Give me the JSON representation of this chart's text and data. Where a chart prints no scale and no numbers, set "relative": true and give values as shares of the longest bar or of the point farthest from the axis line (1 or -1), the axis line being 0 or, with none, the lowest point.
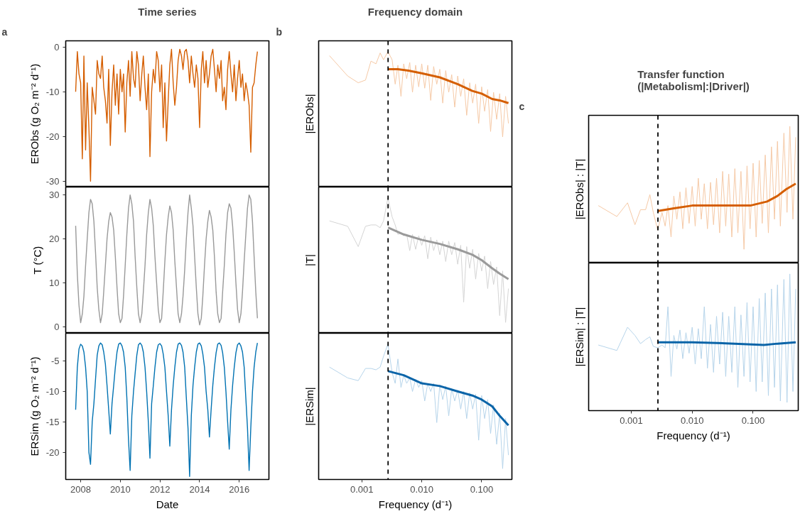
{
  "chart_data": [
    {
      "type": "line",
      "title": "Time series",
      "annotations": [
        "a"
      ],
      "ylabel": "ERObs (g O₂ m⁻² d⁻¹)",
      "tick_labels": "y",
      "xlim": [
        "2007-04",
        "2017-07"
      ],
      "xticks": [
        "2008",
        "2010",
        "2012",
        "2014",
        "2016"
      ],
      "ylim": [
        -31.3,
        1.4
      ],
      "yticks": [
        -30,
        -20,
        -10,
        0
      ],
      "x": [
        "2007-10",
        "2007-11",
        "2007-12",
        "2008-01",
        "2008-02",
        "2008-03",
        "2008-04",
        "2008-05",
        "2008-06",
        "2008-07",
        "2008-08",
        "2008-09",
        "2008-10",
        "2008-11",
        "2008-12",
        "2009-01",
        "2009-02",
        "2009-03",
        "2009-04",
        "2009-05",
        "2009-06",
        "2009-07",
        "2009-08",
        "2009-09",
        "2009-10",
        "2009-11",
        "2009-12",
        "2010-01",
        "2010-02",
        "2010-03",
        "2010-04",
        "2010-05",
        "2010-06",
        "2010-07",
        "2010-08",
        "2010-09",
        "2010-10",
        "2010-11",
        "2010-12",
        "2011-01",
        "2011-02",
        "2011-03",
        "2011-04",
        "2011-05",
        "2011-06",
        "2011-07",
        "2011-08",
        "2011-09",
        "2011-10",
        "2011-11",
        "2011-12",
        "2012-01",
        "2012-02",
        "2012-03",
        "2012-04",
        "2012-05",
        "2012-06",
        "2012-07",
        "2012-08",
        "2012-09",
        "2012-10",
        "2012-11",
        "2012-12",
        "2013-01",
        "2013-02",
        "2013-03",
        "2013-04",
        "2013-05",
        "2013-06",
        "2013-07",
        "2013-08",
        "2013-09",
        "2013-10",
        "2013-11",
        "2013-12",
        "2014-01",
        "2014-02",
        "2014-03",
        "2014-04",
        "2014-05",
        "2014-06",
        "2014-07",
        "2014-08",
        "2014-09",
        "2014-10",
        "2014-11",
        "2014-12",
        "2015-01",
        "2015-02",
        "2015-03",
        "2015-04",
        "2015-05",
        "2015-06",
        "2015-07",
        "2015-08",
        "2015-09",
        "2015-10",
        "2015-11",
        "2015-12",
        "2016-01",
        "2016-02",
        "2016-03",
        "2016-04",
        "2016-05",
        "2016-06",
        "2016-07",
        "2016-08",
        "2016-09",
        "2016-10",
        "2016-11",
        "2016-12"
      ],
      "series": [
        {
          "color": "#d55e00",
          "values": [
            -10,
            -1,
            -6,
            -8,
            -25,
            -2,
            -23,
            -8,
            -18,
            -30,
            -9,
            -12,
            -15,
            -3,
            -6,
            -7,
            -2,
            -9,
            -12,
            -17,
            -5,
            -22,
            -10,
            -4,
            -13,
            -6,
            -15,
            -5,
            -10,
            -6,
            -19,
            -8,
            -3,
            -11,
            -1,
            -7,
            -9,
            -1,
            -4,
            -12,
            -6,
            -2,
            -9,
            -14,
            -6,
            -24.5,
            -10,
            -5,
            -8,
            -1,
            -3,
            -10,
            -4,
            -18,
            -8,
            -21,
            -12,
            -4,
            -0.5,
            -8,
            -13,
            -9,
            -3,
            -0.5,
            -2,
            -5,
            -1,
            -0.5,
            -3,
            -8,
            -2,
            -6,
            -9,
            -4,
            -7,
            -18,
            -5,
            -1,
            -8,
            -3,
            -9,
            -6,
            -2,
            -0.5,
            -5,
            -10,
            -4,
            -7,
            -3,
            -12,
            -9,
            -14,
            -5,
            -1,
            -6,
            -10,
            -4,
            -12,
            -7,
            -3,
            -9,
            -6,
            -12,
            -8,
            -10,
            -13,
            -23.5,
            -9,
            -8,
            -4,
            -1
          ]
        }
      ]
    },
    {
      "type": "line",
      "ylabel": "T (°C)",
      "tick_labels": "y",
      "xlim": [
        "2007-04",
        "2017-07"
      ],
      "xticks": [
        "2008",
        "2010",
        "2012",
        "2014",
        "2016"
      ],
      "ylim": [
        -1.4,
        31.8
      ],
      "yticks": [
        0,
        10,
        20,
        30
      ],
      "x": [
        "2007-10",
        "2007-11",
        "2007-12",
        "2008-01",
        "2008-02",
        "2008-03",
        "2008-04",
        "2008-05",
        "2008-06",
        "2008-07",
        "2008-08",
        "2008-09",
        "2008-10",
        "2008-11",
        "2008-12",
        "2009-01",
        "2009-02",
        "2009-03",
        "2009-04",
        "2009-05",
        "2009-06",
        "2009-07",
        "2009-08",
        "2009-09",
        "2009-10",
        "2009-11",
        "2009-12",
        "2010-01",
        "2010-02",
        "2010-03",
        "2010-04",
        "2010-05",
        "2010-06",
        "2010-07",
        "2010-08",
        "2010-09",
        "2010-10",
        "2010-11",
        "2010-12",
        "2011-01",
        "2011-02",
        "2011-03",
        "2011-04",
        "2011-05",
        "2011-06",
        "2011-07",
        "2011-08",
        "2011-09",
        "2011-10",
        "2011-11",
        "2011-12",
        "2012-01",
        "2012-02",
        "2012-03",
        "2012-04",
        "2012-05",
        "2012-06",
        "2012-07",
        "2012-08",
        "2012-09",
        "2012-10",
        "2012-11",
        "2012-12",
        "2013-01",
        "2013-02",
        "2013-03",
        "2013-04",
        "2013-05",
        "2013-06",
        "2013-07",
        "2013-08",
        "2013-09",
        "2013-10",
        "2013-11",
        "2013-12",
        "2014-01",
        "2014-02",
        "2014-03",
        "2014-04",
        "2014-05",
        "2014-06",
        "2014-07",
        "2014-08",
        "2014-09",
        "2014-10",
        "2014-11",
        "2014-12",
        "2015-01",
        "2015-02",
        "2015-03",
        "2015-04",
        "2015-05",
        "2015-06",
        "2015-07",
        "2015-08",
        "2015-09",
        "2015-10",
        "2015-11",
        "2015-12",
        "2016-01",
        "2016-02",
        "2016-03",
        "2016-04",
        "2016-05",
        "2016-06",
        "2016-07",
        "2016-08",
        "2016-09",
        "2016-10",
        "2016-11",
        "2016-12"
      ],
      "series": [
        {
          "color": "#999999",
          "values": [
            23,
            12,
            5,
            1,
            3,
            7,
            14,
            20,
            26,
            29,
            28,
            24,
            17,
            9,
            4,
            1,
            3,
            8,
            14,
            20,
            24,
            26,
            25,
            22,
            16,
            9,
            3,
            1,
            2,
            7,
            14,
            21,
            27,
            30,
            28,
            24,
            16,
            9,
            3,
            1,
            3,
            8,
            14,
            21,
            26,
            29,
            27,
            23,
            16,
            10,
            4,
            1,
            2,
            8,
            15,
            21,
            25,
            27.5,
            26,
            22,
            15,
            9,
            3,
            1,
            3,
            7,
            13,
            20,
            26,
            30,
            27,
            23,
            16,
            9,
            3,
            0.5,
            2,
            7,
            14,
            20,
            24,
            26.5,
            25,
            22,
            16,
            8,
            3,
            1,
            2,
            8,
            14,
            21,
            26,
            28,
            27,
            23,
            17,
            10,
            4,
            1,
            3,
            8,
            15,
            21,
            27,
            30,
            29,
            24,
            16,
            8,
            2
          ]
        }
      ]
    },
    {
      "type": "line",
      "ylabel": "ERSim (g O₂ m⁻² d⁻¹)",
      "xlabel": "Date",
      "xlim": [
        "2007-04",
        "2017-07"
      ],
      "xticks": [
        "2008",
        "2010",
        "2012",
        "2014",
        "2016"
      ],
      "ylim": [
        -24.5,
        -0.4
      ],
      "yticks": [
        -20,
        -15,
        -10,
        -5
      ],
      "x": [
        "2007-10",
        "2007-11",
        "2007-12",
        "2008-01",
        "2008-02",
        "2008-03",
        "2008-04",
        "2008-05",
        "2008-06",
        "2008-07",
        "2008-08",
        "2008-09",
        "2008-10",
        "2008-11",
        "2008-12",
        "2009-01",
        "2009-02",
        "2009-03",
        "2009-04",
        "2009-05",
        "2009-06",
        "2009-07",
        "2009-08",
        "2009-09",
        "2009-10",
        "2009-11",
        "2009-12",
        "2010-01",
        "2010-02",
        "2010-03",
        "2010-04",
        "2010-05",
        "2010-06",
        "2010-07",
        "2010-08",
        "2010-09",
        "2010-10",
        "2010-11",
        "2010-12",
        "2011-01",
        "2011-02",
        "2011-03",
        "2011-04",
        "2011-05",
        "2011-06",
        "2011-07",
        "2011-08",
        "2011-09",
        "2011-10",
        "2011-11",
        "2011-12",
        "2012-01",
        "2012-02",
        "2012-03",
        "2012-04",
        "2012-05",
        "2012-06",
        "2012-07",
        "2012-08",
        "2012-09",
        "2012-10",
        "2012-11",
        "2012-12",
        "2013-01",
        "2013-02",
        "2013-03",
        "2013-04",
        "2013-05",
        "2013-06",
        "2013-07",
        "2013-08",
        "2013-09",
        "2013-10",
        "2013-11",
        "2013-12",
        "2014-01",
        "2014-02",
        "2014-03",
        "2014-04",
        "2014-05",
        "2014-06",
        "2014-07",
        "2014-08",
        "2014-09",
        "2014-10",
        "2014-11",
        "2014-12",
        "2015-01",
        "2015-02",
        "2015-03",
        "2015-04",
        "2015-05",
        "2015-06",
        "2015-07",
        "2015-08",
        "2015-09",
        "2015-10",
        "2015-11",
        "2015-12",
        "2016-01",
        "2016-02",
        "2016-03",
        "2016-04",
        "2016-05",
        "2016-06",
        "2016-07",
        "2016-08",
        "2016-09",
        "2016-10",
        "2016-11",
        "2016-12"
      ],
      "series": [
        {
          "color": "#0072b2",
          "values": [
            -13,
            -6,
            -3,
            -2.2,
            -2.5,
            -3.5,
            -6,
            -10,
            -20,
            -22,
            -15,
            -12,
            -8,
            -4,
            -2.5,
            -2,
            -2.3,
            -3.5,
            -5.5,
            -9,
            -13,
            -17,
            -12,
            -9,
            -6,
            -3.5,
            -2.2,
            -2,
            -2.5,
            -3.5,
            -6,
            -11,
            -18,
            -23,
            -14,
            -10,
            -7,
            -4,
            -2.3,
            -2,
            -2.4,
            -3.5,
            -6,
            -10,
            -15,
            -21,
            -12,
            -9,
            -6,
            -3.5,
            -2.3,
            -2.1,
            -2.5,
            -3.8,
            -6,
            -10,
            -14,
            -19,
            -13,
            -9,
            -6,
            -3.5,
            -2.2,
            -2,
            -2.4,
            -3.5,
            -6,
            -11,
            -16,
            -24,
            -14,
            -9,
            -6,
            -3.5,
            -2.2,
            -2,
            -2.5,
            -3.8,
            -6,
            -10,
            -13,
            -17.5,
            -13,
            -9,
            -6,
            -3.6,
            -2.2,
            -2,
            -2.4,
            -3.6,
            -6,
            -10,
            -15,
            -19.5,
            -13,
            -9,
            -6,
            -3.6,
            -2.3,
            -2,
            -2.5,
            -3.5,
            -6,
            -11,
            -16,
            -23,
            -16,
            -10,
            -6,
            -3.5,
            -2
          ]
        }
      ]
    },
    {
      "type": "line",
      "title": "Frequency domain",
      "annotations": [
        "b"
      ],
      "ylabel": "|ERObs|",
      "relative": true,
      "log": "x",
      "tick_labels": false,
      "xlim": [
        0.00019,
        0.32
      ],
      "ref_lines": [
        {
          "axis": "x",
          "value": 0.00274,
          "color": "#000000",
          "line_style": "dashed"
        }
      ],
      "series": [
        {
          "color": "#f5c9a6",
          "x": [
            0.000288,
            0.00058,
            0.00087,
            0.00115,
            0.00142,
            0.00172,
            0.00202,
            0.0023,
            0.00272,
            0.0032,
            0.0036,
            0.004,
            0.0045,
            0.005,
            0.0056,
            0.0063,
            0.007,
            0.0079,
            0.0089,
            0.01,
            0.0112,
            0.0126,
            0.0141,
            0.0158,
            0.0178,
            0.02,
            0.0224,
            0.0251,
            0.0282,
            0.0316,
            0.0355,
            0.0398,
            0.0447,
            0.0501,
            0.0562,
            0.0631,
            0.0708,
            0.0794,
            0.0891,
            0.1,
            0.112,
            0.126,
            0.141,
            0.158,
            0.178,
            0.2,
            0.224,
            0.251,
            0.28
          ],
          "values": [
            0.97,
            0.82,
            0.77,
            0.79,
            0.93,
            0.91,
            0.99,
            0.94,
            1.0,
            0.94,
            0.76,
            0.9,
            0.67,
            0.91,
            0.8,
            0.92,
            0.7,
            0.9,
            0.74,
            0.91,
            0.73,
            0.9,
            0.64,
            0.89,
            0.76,
            0.87,
            0.62,
            0.86,
            0.7,
            0.83,
            0.59,
            0.82,
            0.67,
            0.8,
            0.53,
            0.77,
            0.62,
            0.76,
            0.47,
            0.74,
            0.56,
            0.72,
            0.41,
            0.7,
            0.5,
            0.69,
            0.37,
            0.67,
            0.47
          ]
        },
        {
          "color": "#d55e00",
          "x": [
            0.00274,
            0.004,
            0.006,
            0.01,
            0.02,
            0.04,
            0.07,
            0.1,
            0.15,
            0.2,
            0.28
          ],
          "values": [
            0.87,
            0.87,
            0.86,
            0.84,
            0.81,
            0.76,
            0.71,
            0.69,
            0.65,
            0.64,
            0.62
          ]
        }
      ]
    },
    {
      "type": "line",
      "ylabel": "|T|",
      "relative": true,
      "log": "x",
      "tick_labels": false,
      "xlim": [
        0.00019,
        0.32
      ],
      "ref_lines": [
        {
          "axis": "x",
          "value": 0.00274,
          "color": "#000000",
          "line_style": "dashed"
        }
      ],
      "series": [
        {
          "color": "#d4d4d4",
          "x": [
            0.000288,
            0.00058,
            0.00087,
            0.00115,
            0.00142,
            0.00172,
            0.00202,
            0.0023,
            0.00272,
            0.0032,
            0.0036,
            0.004,
            0.0045,
            0.005,
            0.0056,
            0.0063,
            0.007,
            0.0079,
            0.0089,
            0.01,
            0.0112,
            0.0126,
            0.0141,
            0.0158,
            0.0178,
            0.02,
            0.0224,
            0.0251,
            0.0282,
            0.0316,
            0.0355,
            0.0398,
            0.0447,
            0.0501,
            0.0562,
            0.0631,
            0.0708,
            0.0794,
            0.0891,
            0.1,
            0.112,
            0.126,
            0.141,
            0.158,
            0.178,
            0.2,
            0.224,
            0.251,
            0.28
          ],
          "values": [
            0.83,
            0.79,
            0.64,
            0.79,
            0.8,
            0.8,
            0.78,
            0.83,
            1.0,
            0.86,
            0.8,
            0.73,
            0.74,
            0.72,
            0.73,
            0.61,
            0.73,
            0.62,
            0.72,
            0.65,
            0.72,
            0.55,
            0.71,
            0.61,
            0.69,
            0.58,
            0.68,
            0.53,
            0.68,
            0.58,
            0.67,
            0.51,
            0.65,
            0.23,
            0.64,
            0.48,
            0.62,
            0.4,
            0.59,
            0.46,
            0.57,
            0.33,
            0.53,
            0.36,
            0.49,
            0.13,
            0.46,
            0.08,
            0.33
          ]
        },
        {
          "color": "#9a9a9a",
          "x": [
            0.00274,
            0.005,
            0.01,
            0.02,
            0.04,
            0.07,
            0.1,
            0.15,
            0.2,
            0.28
          ],
          "values": [
            0.78,
            0.73,
            0.69,
            0.66,
            0.62,
            0.58,
            0.54,
            0.48,
            0.44,
            0.4
          ]
        }
      ]
    },
    {
      "type": "line",
      "ylabel": "|ERSim|",
      "xlabel": "Frequency (d⁻¹)",
      "relative": true,
      "log": "x",
      "tick_labels": "x",
      "xlim": [
        0.00019,
        0.32
      ],
      "xticks": [
        {
          "value": 0.001,
          "label": "0.001"
        },
        {
          "value": 0.01,
          "label": "0.010"
        },
        {
          "value": 0.1,
          "label": "0.100"
        }
      ],
      "ref_lines": [
        {
          "axis": "x",
          "value": 0.00274,
          "color": "#000000",
          "line_style": "dashed"
        }
      ],
      "series": [
        {
          "color": "#b6d4ea",
          "x": [
            0.000288,
            0.00058,
            0.00087,
            0.00115,
            0.00142,
            0.00172,
            0.00202,
            0.0023,
            0.00272,
            0.0032,
            0.0036,
            0.004,
            0.0045,
            0.005,
            0.0056,
            0.0063,
            0.007,
            0.0079,
            0.0089,
            0.01,
            0.0112,
            0.0126,
            0.0141,
            0.0158,
            0.0178,
            0.02,
            0.0224,
            0.0251,
            0.0282,
            0.0316,
            0.0355,
            0.0398,
            0.0447,
            0.0501,
            0.0562,
            0.0631,
            0.0708,
            0.0794,
            0.0891,
            0.1,
            0.112,
            0.126,
            0.141,
            0.158,
            0.178,
            0.2,
            0.224,
            0.251,
            0.28
          ],
          "values": [
            0.83,
            0.75,
            0.73,
            0.82,
            0.82,
            0.81,
            0.83,
            0.91,
            1.0,
            0.79,
            0.71,
            0.89,
            0.68,
            0.77,
            0.71,
            0.75,
            0.65,
            0.74,
            0.68,
            0.73,
            0.58,
            0.71,
            0.65,
            0.71,
            0.42,
            0.7,
            0.59,
            0.69,
            0.47,
            0.67,
            0.58,
            0.66,
            0.52,
            0.65,
            0.45,
            0.64,
            0.52,
            0.63,
            0.29,
            0.62,
            0.45,
            0.59,
            0.34,
            0.55,
            0.26,
            0.49,
            0.08,
            0.45,
            0.18
          ]
        },
        {
          "color": "#0a64a8",
          "x": [
            0.00274,
            0.005,
            0.01,
            0.02,
            0.04,
            0.07,
            0.1,
            0.15,
            0.2,
            0.28
          ],
          "values": [
            0.8,
            0.77,
            0.71,
            0.69,
            0.65,
            0.62,
            0.59,
            0.54,
            0.47,
            0.4
          ]
        }
      ]
    },
    {
      "type": "line",
      "title": "Transfer function\n(|Metabolism|:|Driver|)",
      "annotations": [
        "c"
      ],
      "ylabel": "|ERObs| : |T|",
      "relative": true,
      "log": "x",
      "tick_labels": false,
      "xlim": [
        0.0002,
        0.55
      ],
      "ref_lines": [
        {
          "axis": "x",
          "value": 0.00274,
          "color": "#000000",
          "line_style": "dashed"
        }
      ],
      "series": [
        {
          "color": "#f5c9a6",
          "x": [
            0.000288,
            0.00058,
            0.00087,
            0.00115,
            0.00142,
            0.00172,
            0.00202,
            0.0023,
            0.00272,
            0.0032,
            0.0036,
            0.004,
            0.0045,
            0.005,
            0.0056,
            0.0063,
            0.007,
            0.0079,
            0.0089,
            0.01,
            0.0112,
            0.0126,
            0.0141,
            0.0158,
            0.0178,
            0.02,
            0.0224,
            0.0251,
            0.0282,
            0.0316,
            0.0355,
            0.0398,
            0.0447,
            0.0501,
            0.0562,
            0.0631,
            0.0708,
            0.0794,
            0.0891,
            0.1,
            0.112,
            0.126,
            0.141,
            0.158,
            0.178,
            0.2,
            0.224,
            0.251,
            0.28,
            0.32,
            0.36,
            0.4,
            0.45,
            0.5
          ],
          "values": [
            0.42,
            0.34,
            0.44,
            0.28,
            0.39,
            0.39,
            0.5,
            0.37,
            0.24,
            0.37,
            0.27,
            0.42,
            0.19,
            0.49,
            0.32,
            0.52,
            0.25,
            0.55,
            0.29,
            0.56,
            0.27,
            0.62,
            0.32,
            0.58,
            0.25,
            0.59,
            0.28,
            0.62,
            0.22,
            0.67,
            0.27,
            0.65,
            0.19,
            0.69,
            0.22,
            0.67,
            0.1,
            0.71,
            0.25,
            0.73,
            0.19,
            0.75,
            0.29,
            0.79,
            0.22,
            0.85,
            0.32,
            0.89,
            0.27,
            0.95,
            0.37,
            1.0,
            0.32,
            0.92
          ]
        },
        {
          "color": "#d55e00",
          "x": [
            0.00274,
            0.005,
            0.01,
            0.03,
            0.09,
            0.17,
            0.25,
            0.35,
            0.5
          ],
          "values": [
            0.38,
            0.4,
            0.42,
            0.42,
            0.42,
            0.45,
            0.49,
            0.54,
            0.58
          ]
        }
      ]
    },
    {
      "type": "line",
      "ylabel": "|ERSim| : |T|",
      "xlabel": "Frequency (d⁻¹)",
      "relative": true,
      "log": "x",
      "tick_labels": "x",
      "xlim": [
        0.0002,
        0.55
      ],
      "xticks": [
        {
          "value": 0.001,
          "label": "0.001"
        },
        {
          "value": 0.01,
          "label": "0.010"
        },
        {
          "value": 0.1,
          "label": "0.100"
        }
      ],
      "ref_lines": [
        {
          "axis": "x",
          "value": 0.00274,
          "color": "#000000",
          "line_style": "dashed"
        }
      ],
      "series": [
        {
          "color": "#b6d4ea",
          "x": [
            0.000288,
            0.00058,
            0.00087,
            0.00115,
            0.00142,
            0.00172,
            0.00202,
            0.0023,
            0.00272,
            0.0032,
            0.0036,
            0.004,
            0.0045,
            0.005,
            0.0056,
            0.0063,
            0.007,
            0.0079,
            0.0089,
            0.01,
            0.0112,
            0.0126,
            0.0141,
            0.0158,
            0.0178,
            0.02,
            0.0224,
            0.0251,
            0.0282,
            0.0316,
            0.0355,
            0.0398,
            0.0447,
            0.0501,
            0.0562,
            0.0631,
            0.0708,
            0.0794,
            0.0891,
            0.1,
            0.112,
            0.126,
            0.141,
            0.158,
            0.178,
            0.2,
            0.224,
            0.251,
            0.28,
            0.32,
            0.36,
            0.4,
            0.45,
            0.5
          ],
          "values": [
            0.48,
            0.44,
            0.61,
            0.55,
            0.49,
            0.52,
            0.54,
            0.47,
            0.46,
            0.48,
            0.46,
            0.76,
            0.25,
            0.55,
            0.45,
            0.59,
            0.38,
            0.57,
            0.42,
            0.61,
            0.34,
            0.6,
            0.38,
            0.76,
            0.31,
            0.63,
            0.28,
            0.69,
            0.34,
            0.72,
            0.25,
            0.69,
            0.28,
            0.76,
            0.17,
            0.7,
            0.25,
            0.79,
            0.21,
            0.76,
            0.14,
            0.82,
            0.21,
            0.86,
            0.11,
            0.89,
            0.17,
            0.92,
            0.07,
            0.96,
            0.06,
            1.0,
            0.14,
            0.89
          ]
        },
        {
          "color": "#0a64a8",
          "x": [
            0.00274,
            0.01,
            0.05,
            0.15,
            0.25,
            0.5
          ],
          "values": [
            0.5,
            0.5,
            0.49,
            0.48,
            0.49,
            0.5
          ]
        }
      ]
    }
  ]
}
